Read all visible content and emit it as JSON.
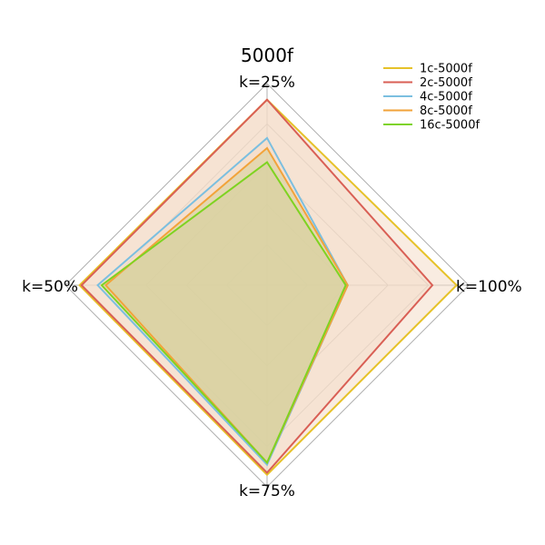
{
  "chart_data": {
    "type": "radar",
    "title": "5000f",
    "axes": [
      "k=25%",
      "k=100%",
      "k=75%",
      "k=50%"
    ],
    "rmax": 1.0,
    "grid_levels": [
      0.2,
      0.4,
      0.6,
      0.8,
      1.0
    ],
    "grid": true,
    "legend_position": "top-right",
    "series": [
      {
        "name": "1c-5000f",
        "color": "#e6c229",
        "values": [
          0.92,
          0.94,
          0.94,
          0.93
        ],
        "fill": "#f4dcc8"
      },
      {
        "name": "2c-5000f",
        "color": "#d95f55",
        "values": [
          0.92,
          0.82,
          0.93,
          0.92
        ],
        "fill": "#f4dcc8"
      },
      {
        "name": "4c-5000f",
        "color": "#7bbfe0",
        "values": [
          0.73,
          0.4,
          0.89,
          0.84
        ],
        "fill": "#f4dcc8"
      },
      {
        "name": "8c-5000f",
        "color": "#f2a33a",
        "values": [
          0.68,
          0.4,
          0.88,
          0.8
        ],
        "fill": "#d6d09a"
      },
      {
        "name": "16c-5000f",
        "color": "#7ed321",
        "values": [
          0.61,
          0.39,
          0.88,
          0.82
        ],
        "fill": "#d6d09a"
      }
    ]
  }
}
